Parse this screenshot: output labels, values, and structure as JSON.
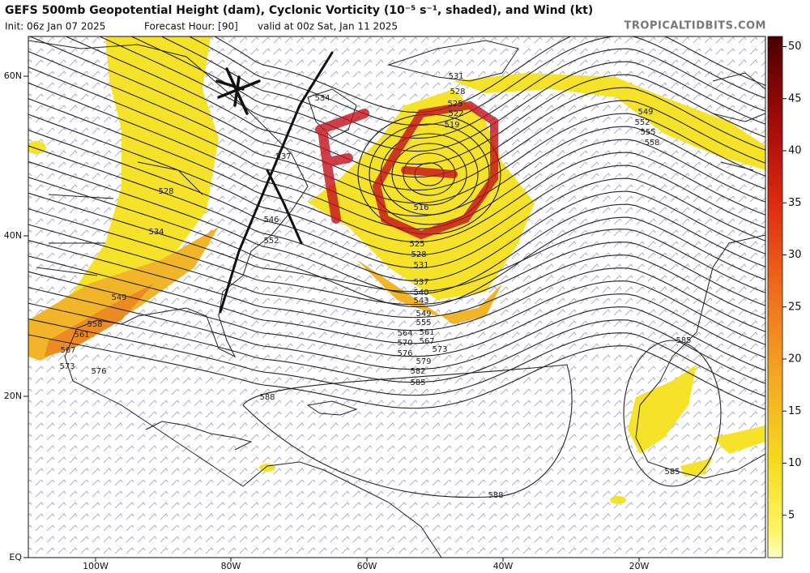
{
  "header": {
    "title": "GEFS 500mb Geopotential Height (dam), Cyclonic Vorticity (10⁻⁵ s⁻¹, shaded), and Wind (kt)",
    "init": "Init: 06z Jan 07 2025",
    "forecast_hour": "Forecast Hour: [90]",
    "valid": "valid at 00z Sat, Jan 11 2025",
    "source": "TROPICALTIDBITS.COM"
  },
  "map": {
    "lat_labels": [
      "60N",
      "40N",
      "20N",
      "EQ"
    ],
    "lon_labels": [
      "100W",
      "80W",
      "60W",
      "40W",
      "20W"
    ],
    "contour_labels": [
      531,
      528,
      525,
      522,
      519,
      516,
      534,
      537,
      549,
      552,
      555,
      558,
      528,
      534,
      546,
      552,
      549,
      558,
      561,
      567,
      573,
      576,
      525,
      528,
      531,
      537,
      540,
      543,
      549,
      555,
      561,
      564,
      567,
      570,
      573,
      576,
      579,
      582,
      585,
      588,
      588,
      585,
      585
    ]
  },
  "colorbar": {
    "ticks": [
      5,
      10,
      15,
      20,
      25,
      30,
      35,
      40,
      45,
      50
    ]
  }
}
